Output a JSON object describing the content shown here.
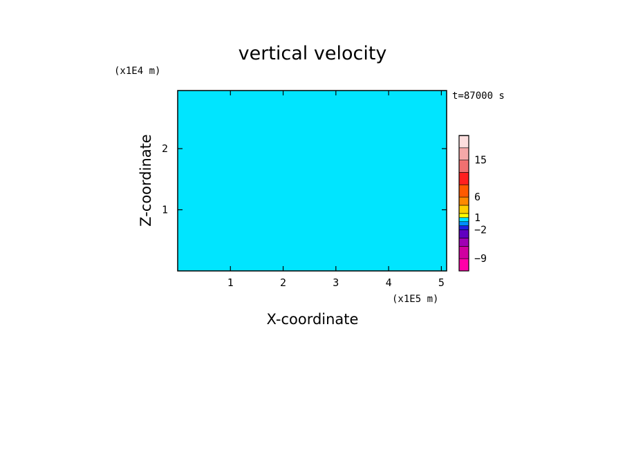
{
  "chart_data": {
    "type": "heatmap",
    "title": "vertical velocity",
    "xlabel": "X-coordinate",
    "ylabel": "Z-coordinate",
    "x_unit": "(x1E5 m)",
    "y_unit": "(x1E4 m)",
    "time_label": "t=87000 s",
    "xlim": [
      0,
      5.1
    ],
    "ylim": [
      0,
      2.95
    ],
    "x_ticks": [
      1,
      2,
      3,
      4,
      5
    ],
    "y_ticks": [
      1,
      2
    ],
    "x_tick_labels": [
      "1",
      "2",
      "3",
      "4",
      "5"
    ],
    "y_tick_labels": [
      "1",
      "2"
    ],
    "field_colors": {
      "positive": "#ffff00",
      "negative": "#00e5ff"
    },
    "colorbar": {
      "levels": [
        -12,
        -9,
        -6,
        -4,
        -2,
        -1,
        0,
        1,
        2,
        4,
        6,
        9,
        12,
        15,
        18,
        21
      ],
      "colors": [
        "#ff00a8",
        "#d000a0",
        "#a000b4",
        "#6000c0",
        "#2020e0",
        "#0090ff",
        "#00e5ff",
        "#ffff00",
        "#ffd000",
        "#ff8a00",
        "#ff5a00",
        "#ff2020",
        "#f07070",
        "#f5a8a8",
        "#fcdede",
        "#fff4f0"
      ],
      "tick_labels": [
        {
          "label": "15",
          "value": 15
        },
        {
          "label": "6",
          "value": 6
        },
        {
          "label": "1",
          "value": 1
        },
        {
          "label": "−2",
          "value": -2
        },
        {
          "label": "−9",
          "value": -9
        }
      ]
    }
  }
}
